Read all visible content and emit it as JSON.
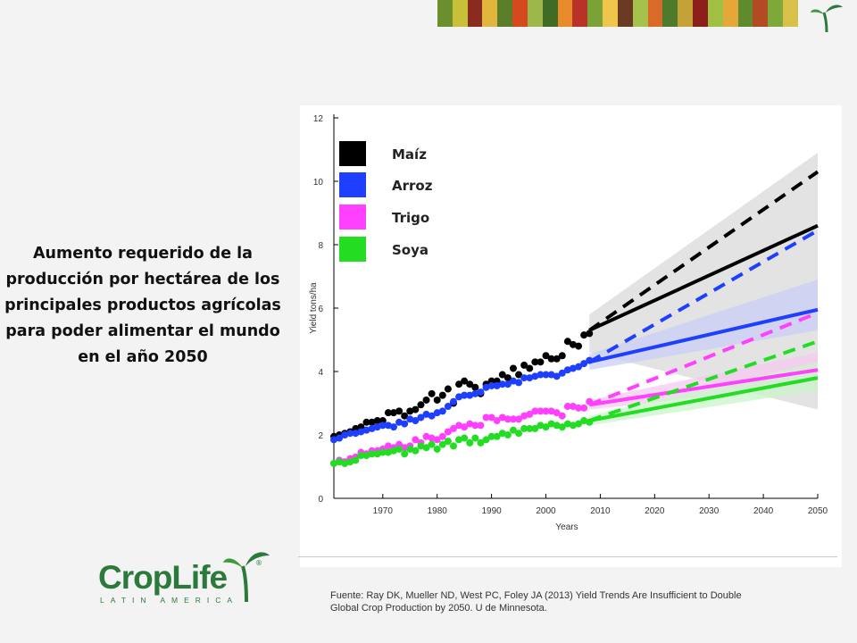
{
  "headline": "Aumento requerido de la producción por hectárea de los principales productos agrícolas para poder alimentar el mundo en el año 2050",
  "source": "Fuente: Ray DK, Mueller ND, West PC, Foley JA (2013) Yield Trends Are Insufficient to Double Global Crop Production by 2050. U de Minnesota.",
  "logo": {
    "name": "CropLife",
    "subtitle": "LATIN AMERICA",
    "registered": "®"
  },
  "stripe_colors": [
    "#6a8f2c",
    "#c9c03a",
    "#8a2b1f",
    "#e2b53d",
    "#5a7d2a",
    "#d44a1e",
    "#9db74a",
    "#3f6b25",
    "#e98b2b",
    "#b8322a",
    "#7aa236",
    "#f0c64a",
    "#6b3a22",
    "#a5c24d",
    "#d96b2a",
    "#4e7a2c",
    "#c5a238",
    "#8c1f1b",
    "#9fbf45",
    "#e5a63a",
    "#5f8a2e",
    "#b34a24",
    "#7fa83b",
    "#d8c04a"
  ],
  "chart_data": {
    "type": "line",
    "xlabel": "Years",
    "ylabel": "Yield tons/ha",
    "xlim": [
      1961,
      2050
    ],
    "ylim": [
      0,
      12
    ],
    "xticks": [
      1970,
      1980,
      1990,
      2000,
      2010,
      2020,
      2030,
      2040,
      2050
    ],
    "yticks": [
      0,
      2,
      4,
      6,
      8,
      10,
      12
    ],
    "legend_position": "top-left",
    "series": [
      {
        "name": "Maíz",
        "color": "#000000",
        "observed_x": [
          1961,
          1962,
          1963,
          1964,
          1965,
          1966,
          1967,
          1968,
          1969,
          1970,
          1971,
          1972,
          1973,
          1974,
          1975,
          1976,
          1977,
          1978,
          1979,
          1980,
          1981,
          1982,
          1983,
          1984,
          1985,
          1986,
          1987,
          1988,
          1989,
          1990,
          1991,
          1992,
          1993,
          1994,
          1995,
          1996,
          1997,
          1998,
          1999,
          2000,
          2001,
          2002,
          2003,
          2004,
          2005,
          2006,
          2007,
          2008
        ],
        "observed_y": [
          1.95,
          2.0,
          2.05,
          2.1,
          2.2,
          2.25,
          2.4,
          2.4,
          2.45,
          2.45,
          2.7,
          2.7,
          2.75,
          2.6,
          2.75,
          2.8,
          2.95,
          3.1,
          3.3,
          3.1,
          3.25,
          3.45,
          3.0,
          3.6,
          3.7,
          3.6,
          3.5,
          3.3,
          3.6,
          3.7,
          3.7,
          3.9,
          3.8,
          4.1,
          3.9,
          4.2,
          4.1,
          4.3,
          4.3,
          4.5,
          4.4,
          4.4,
          4.5,
          4.95,
          4.85,
          4.8,
          5.15,
          5.2
        ],
        "projection_x": [
          2008,
          2050
        ],
        "current_trend_y": [
          5.3,
          8.6
        ],
        "required_y": [
          5.3,
          10.3
        ],
        "band_low": [
          4.6,
          2.8
        ],
        "band_high": [
          5.8,
          10.9
        ]
      },
      {
        "name": "Arroz",
        "color": "#1f3fff",
        "observed_x": [
          1961,
          1962,
          1963,
          1964,
          1965,
          1966,
          1967,
          1968,
          1969,
          1970,
          1971,
          1972,
          1973,
          1974,
          1975,
          1976,
          1977,
          1978,
          1979,
          1980,
          1981,
          1982,
          1983,
          1984,
          1985,
          1986,
          1987,
          1988,
          1989,
          1990,
          1991,
          1992,
          1993,
          1994,
          1995,
          1996,
          1997,
          1998,
          1999,
          2000,
          2001,
          2002,
          2003,
          2004,
          2005,
          2006,
          2007,
          2008
        ],
        "observed_y": [
          1.85,
          1.9,
          2.0,
          2.05,
          2.05,
          2.1,
          2.15,
          2.2,
          2.25,
          2.3,
          2.3,
          2.25,
          2.4,
          2.35,
          2.5,
          2.45,
          2.55,
          2.65,
          2.6,
          2.7,
          2.75,
          2.9,
          3.05,
          3.2,
          3.25,
          3.25,
          3.3,
          3.35,
          3.5,
          3.55,
          3.55,
          3.6,
          3.6,
          3.7,
          3.65,
          3.8,
          3.8,
          3.85,
          3.9,
          3.9,
          3.9,
          3.85,
          3.95,
          4.05,
          4.1,
          4.15,
          4.25,
          4.35
        ],
        "projection_x": [
          2008,
          2050
        ],
        "current_trend_y": [
          4.3,
          5.95
        ],
        "required_y": [
          4.3,
          8.45
        ],
        "band_low": [
          4.05,
          5.3
        ],
        "band_high": [
          4.55,
          6.9
        ]
      },
      {
        "name": "Trigo",
        "color": "#ff40ff",
        "observed_x": [
          1961,
          1962,
          1963,
          1964,
          1965,
          1966,
          1967,
          1968,
          1969,
          1970,
          1971,
          1972,
          1973,
          1974,
          1975,
          1976,
          1977,
          1978,
          1979,
          1980,
          1981,
          1982,
          1983,
          1984,
          1985,
          1986,
          1987,
          1988,
          1989,
          1990,
          1991,
          1992,
          1993,
          1994,
          1995,
          1996,
          1997,
          1998,
          1999,
          2000,
          2001,
          2002,
          2003,
          2004,
          2005,
          2006,
          2007,
          2008
        ],
        "observed_y": [
          1.1,
          1.2,
          1.15,
          1.25,
          1.3,
          1.45,
          1.4,
          1.5,
          1.5,
          1.55,
          1.65,
          1.6,
          1.7,
          1.6,
          1.65,
          1.85,
          1.75,
          1.95,
          1.9,
          1.85,
          1.95,
          2.1,
          2.2,
          2.3,
          2.25,
          2.35,
          2.3,
          2.3,
          2.55,
          2.55,
          2.45,
          2.55,
          2.5,
          2.5,
          2.5,
          2.6,
          2.65,
          2.75,
          2.75,
          2.75,
          2.75,
          2.7,
          2.6,
          2.9,
          2.9,
          2.85,
          2.85,
          3.05
        ],
        "projection_x": [
          2008,
          2050
        ],
        "current_trend_y": [
          2.95,
          4.05
        ],
        "required_y": [
          2.95,
          5.85
        ],
        "band_low": [
          2.8,
          3.6
        ],
        "band_high": [
          3.1,
          4.6
        ]
      },
      {
        "name": "Soya",
        "color": "#22dd22",
        "observed_x": [
          1961,
          1962,
          1963,
          1964,
          1965,
          1966,
          1967,
          1968,
          1969,
          1970,
          1971,
          1972,
          1973,
          1974,
          1975,
          1976,
          1977,
          1978,
          1979,
          1980,
          1981,
          1982,
          1983,
          1984,
          1985,
          1986,
          1987,
          1988,
          1989,
          1990,
          1991,
          1992,
          1993,
          1994,
          1995,
          1996,
          1997,
          1998,
          1999,
          2000,
          2001,
          2002,
          2003,
          2004,
          2005,
          2006,
          2007,
          2008
        ],
        "observed_y": [
          1.1,
          1.15,
          1.1,
          1.15,
          1.2,
          1.35,
          1.35,
          1.4,
          1.4,
          1.45,
          1.45,
          1.5,
          1.55,
          1.4,
          1.55,
          1.5,
          1.65,
          1.6,
          1.7,
          1.55,
          1.7,
          1.8,
          1.65,
          1.85,
          1.9,
          1.75,
          1.9,
          1.75,
          1.85,
          1.95,
          1.95,
          2.05,
          2.0,
          2.15,
          2.05,
          2.2,
          2.2,
          2.2,
          2.3,
          2.25,
          2.35,
          2.3,
          2.25,
          2.35,
          2.3,
          2.35,
          2.45,
          2.4
        ],
        "projection_x": [
          2008,
          2050
        ],
        "current_trend_y": [
          2.45,
          3.8
        ],
        "required_y": [
          2.45,
          4.95
        ],
        "band_low": [
          2.3,
          3.4
        ],
        "band_high": [
          2.6,
          4.3
        ]
      }
    ]
  }
}
